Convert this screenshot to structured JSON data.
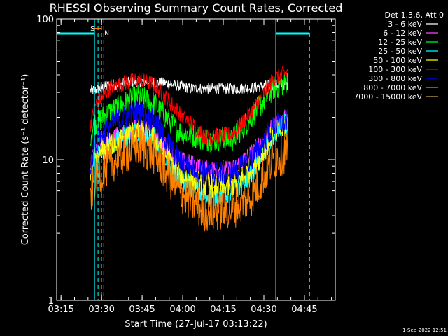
{
  "chart_data": {
    "type": "line",
    "title": "RHESSI Observing Summary Count Rates, Corrected",
    "xlabel": "Start Time (27-Jul-17 03:13:22)",
    "ylabel": "Corrected Count Rate (s⁻¹ detector⁻¹)",
    "y_scale": "log",
    "ylim": [
      1,
      100
    ],
    "xlim_minutes_since_03_13_22": [
      0,
      103
    ],
    "x_ticks": [
      {
        "label": "03:15",
        "minute": 1.6
      },
      {
        "label": "03:30",
        "minute": 16.6
      },
      {
        "label": "03:45",
        "minute": 31.6
      },
      {
        "label": "04:00",
        "minute": 46.6
      },
      {
        "label": "04:15",
        "minute": 61.6
      },
      {
        "label": "04:30",
        "minute": 76.6
      },
      {
        "label": "04:45",
        "minute": 91.6
      }
    ],
    "y_ticks": [
      {
        "label": "1",
        "value": 1
      },
      {
        "label": "10",
        "value": 10
      },
      {
        "label": "100",
        "value": 100
      }
    ],
    "legend_title": "Det 1,3,6, Att 0",
    "legend_position": "right",
    "data_start_minute": 12.5,
    "data_end_minute": 85.5,
    "series": [
      {
        "name": "3 - 6 keV",
        "color": "#ffffff",
        "noise": 0.04,
        "points": [
          [
            12.5,
            31
          ],
          [
            14,
            31
          ],
          [
            20,
            34
          ],
          [
            30,
            36
          ],
          [
            40,
            35
          ],
          [
            50,
            32
          ],
          [
            60,
            32
          ],
          [
            70,
            32
          ],
          [
            80,
            34
          ],
          [
            85.5,
            34
          ]
        ]
      },
      {
        "name": "6 - 12 keV",
        "color": "#ff40ff",
        "noise": 0.07,
        "points": [
          [
            12.5,
            9
          ],
          [
            14,
            12
          ],
          [
            20,
            14
          ],
          [
            30,
            17
          ],
          [
            36,
            15
          ],
          [
            45,
            10
          ],
          [
            55,
            8.5
          ],
          [
            65,
            8.5
          ],
          [
            72,
            11
          ],
          [
            80,
            17
          ],
          [
            85.5,
            20
          ]
        ]
      },
      {
        "name": "12 - 25 keV",
        "color": "#00ff00",
        "noise": 0.09,
        "points": [
          [
            12.5,
            15
          ],
          [
            14,
            18
          ],
          [
            20,
            22
          ],
          [
            30,
            28
          ],
          [
            36,
            25
          ],
          [
            45,
            16
          ],
          [
            55,
            14
          ],
          [
            65,
            14
          ],
          [
            72,
            20
          ],
          [
            80,
            32
          ],
          [
            85.5,
            36
          ]
        ]
      },
      {
        "name": "25 - 50 keV",
        "color": "#00ffff",
        "noise": 0.09,
        "points": [
          [
            12.5,
            8
          ],
          [
            14,
            10
          ],
          [
            20,
            13
          ],
          [
            30,
            16
          ],
          [
            36,
            14
          ],
          [
            45,
            7.5
          ],
          [
            55,
            5.5
          ],
          [
            65,
            6
          ],
          [
            72,
            8
          ],
          [
            80,
            15
          ],
          [
            85.5,
            18
          ]
        ]
      },
      {
        "name": "50 - 100 keV",
        "color": "#ffff00",
        "noise": 0.09,
        "points": [
          [
            12.5,
            8
          ],
          [
            14,
            10
          ],
          [
            20,
            13
          ],
          [
            30,
            16
          ],
          [
            36,
            14
          ],
          [
            45,
            8
          ],
          [
            55,
            6.5
          ],
          [
            65,
            6.5
          ],
          [
            72,
            8.5
          ],
          [
            80,
            15
          ],
          [
            85.5,
            18
          ]
        ]
      },
      {
        "name": "100 - 300 keV",
        "color": "#ff0000",
        "noise": 0.06,
        "points": [
          [
            12.5,
            18
          ],
          [
            14,
            24
          ],
          [
            20,
            33
          ],
          [
            30,
            37
          ],
          [
            36,
            34
          ],
          [
            45,
            22
          ],
          [
            55,
            14.5
          ],
          [
            65,
            15
          ],
          [
            72,
            22
          ],
          [
            80,
            37
          ],
          [
            85.5,
            42
          ]
        ]
      },
      {
        "name": "300 - 800 keV",
        "color": "#0000ff",
        "noise": 0.09,
        "points": [
          [
            12.5,
            9
          ],
          [
            14,
            13
          ],
          [
            20,
            18
          ],
          [
            30,
            22
          ],
          [
            36,
            19
          ],
          [
            45,
            10
          ],
          [
            55,
            8
          ],
          [
            65,
            8
          ],
          [
            72,
            10
          ],
          [
            80,
            17
          ],
          [
            85.5,
            19
          ]
        ]
      },
      {
        "name": "800 - 7000 keV",
        "color": "#ff8000",
        "noise": 0.15,
        "points": [
          [
            12.5,
            5.5
          ],
          [
            14,
            7
          ],
          [
            20,
            9.5
          ],
          [
            30,
            12.5
          ],
          [
            36,
            11
          ],
          [
            45,
            6
          ],
          [
            55,
            4.2
          ],
          [
            65,
            4.5
          ],
          [
            72,
            5.5
          ],
          [
            80,
            10
          ],
          [
            85.5,
            11.5
          ]
        ]
      },
      {
        "name": "7000 - 15000 keV",
        "color": "#d2a050",
        "noise": 0.04,
        "points": []
      }
    ],
    "annotations": {
      "flag_S": {
        "label": "S",
        "color": "#ff8000",
        "start_minute": 14.0,
        "end_minute": 16.6
      },
      "flag_N": {
        "label": "N",
        "color": "#00ffff",
        "minute": 17.4
      },
      "night_bars": {
        "color": "#00ffff",
        "ranges_minutes": [
          [
            0,
            14.0
          ],
          [
            81.0,
            93.5
          ]
        ]
      },
      "solid_lines": [
        {
          "minute": 14.0,
          "color": "#00ffff"
        },
        {
          "minute": 81.0,
          "color": "#00ffff"
        }
      ],
      "dashed_lines": [
        {
          "minute": 16.6,
          "color": "#ff8000"
        },
        {
          "minute": 17.4,
          "color": "#ff8000"
        },
        {
          "minute": 15.3,
          "color": "#00ffff"
        },
        {
          "minute": 93.5,
          "color": "#00ffff"
        }
      ]
    },
    "timestamp": "1-Sep-2022 12:51"
  }
}
